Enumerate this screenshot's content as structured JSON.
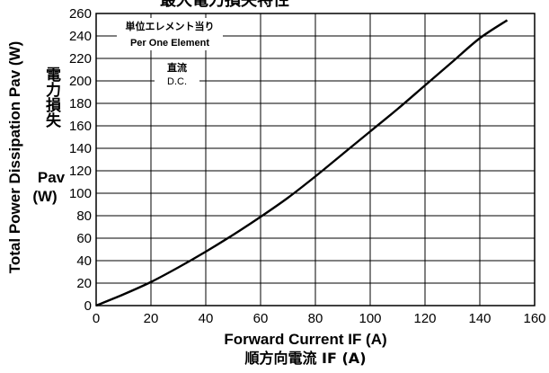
{
  "chart_data": {
    "type": "line",
    "title": "最大電力損失特性",
    "xlabel": "Forward Current IF (A)",
    "xlabel_jp": "順方向電流 IF (A)",
    "ylabel": "Total Power Dissipation Pav (W)",
    "ylabel_jp": "電力損失",
    "ylabel_sym": "Pav",
    "ylabel_unit": "(W)",
    "xlim": [
      0,
      160
    ],
    "ylim": [
      0,
      260
    ],
    "xticks": [
      0,
      20,
      40,
      60,
      80,
      100,
      120,
      140,
      160
    ],
    "yticks": [
      0,
      20,
      40,
      60,
      80,
      100,
      120,
      140,
      160,
      180,
      200,
      220,
      240,
      260
    ],
    "grid": true,
    "annotations": {
      "element_jp": "単位エレメント当り",
      "element_en": "Per One Element",
      "dc_jp": "直流",
      "dc_en": "D.C."
    },
    "series": [
      {
        "x": [
          0,
          10,
          20,
          30,
          40,
          50,
          60,
          70,
          80,
          90,
          100,
          110,
          120,
          130,
          140,
          150
        ],
        "y": [
          0,
          10,
          21,
          34,
          48,
          63,
          79,
          96,
          115,
          135,
          155,
          175,
          196,
          217,
          238,
          254
        ]
      }
    ]
  }
}
